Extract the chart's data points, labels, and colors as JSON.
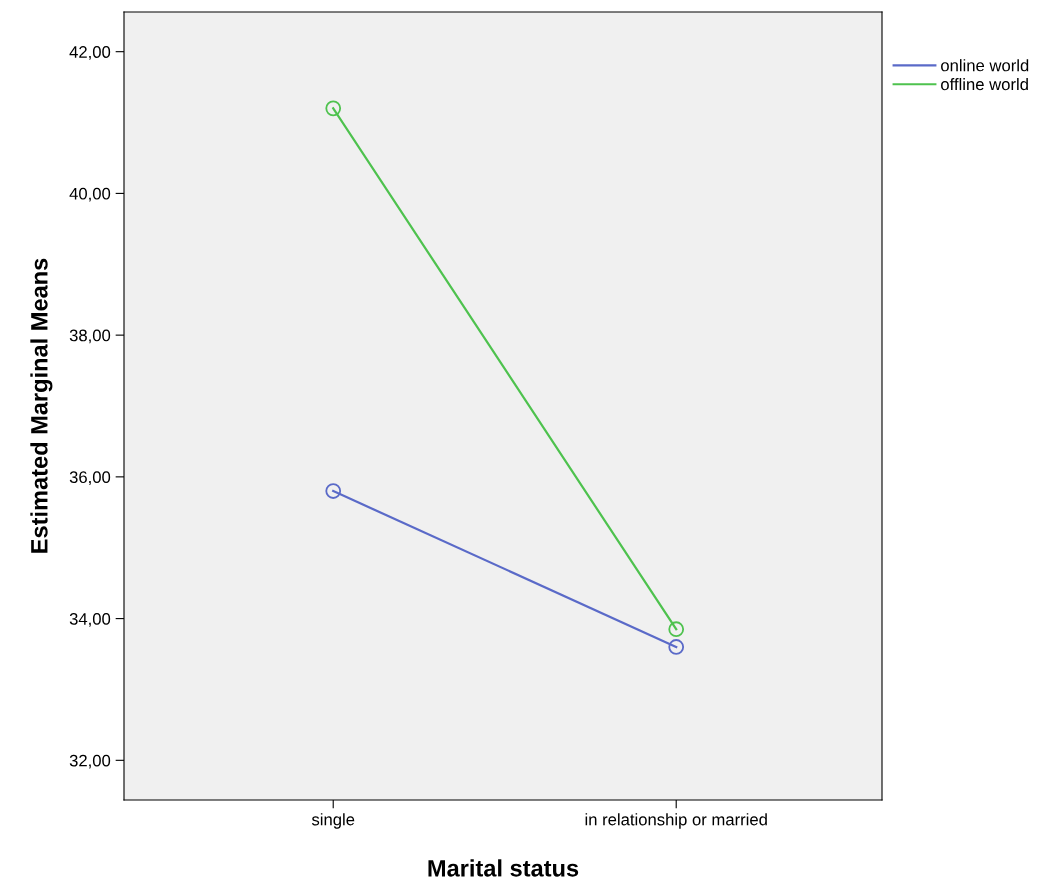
{
  "chart_data": {
    "type": "line",
    "xlabel": "Marital status",
    "ylabel": "Estimated Marginal Means",
    "categories": [
      "single",
      "in relationship or married"
    ],
    "series": [
      {
        "name": "online world",
        "color": "#5a6ac8",
        "values": [
          35.8,
          33.6
        ]
      },
      {
        "name": "offline world",
        "color": "#4ec24e",
        "values": [
          41.2,
          33.85
        ]
      }
    ],
    "ylim": [
      31.44,
      42.56
    ],
    "yticks": [
      {
        "value": 32,
        "label": "32,00"
      },
      {
        "value": 34,
        "label": "34,00"
      },
      {
        "value": 36,
        "label": "36,00"
      },
      {
        "value": 38,
        "label": "38,00"
      },
      {
        "value": 40,
        "label": "40,00"
      },
      {
        "value": 42,
        "label": "42,00"
      }
    ],
    "marker": "circle",
    "line_style": "solid",
    "grid": false,
    "legend": "top right"
  }
}
